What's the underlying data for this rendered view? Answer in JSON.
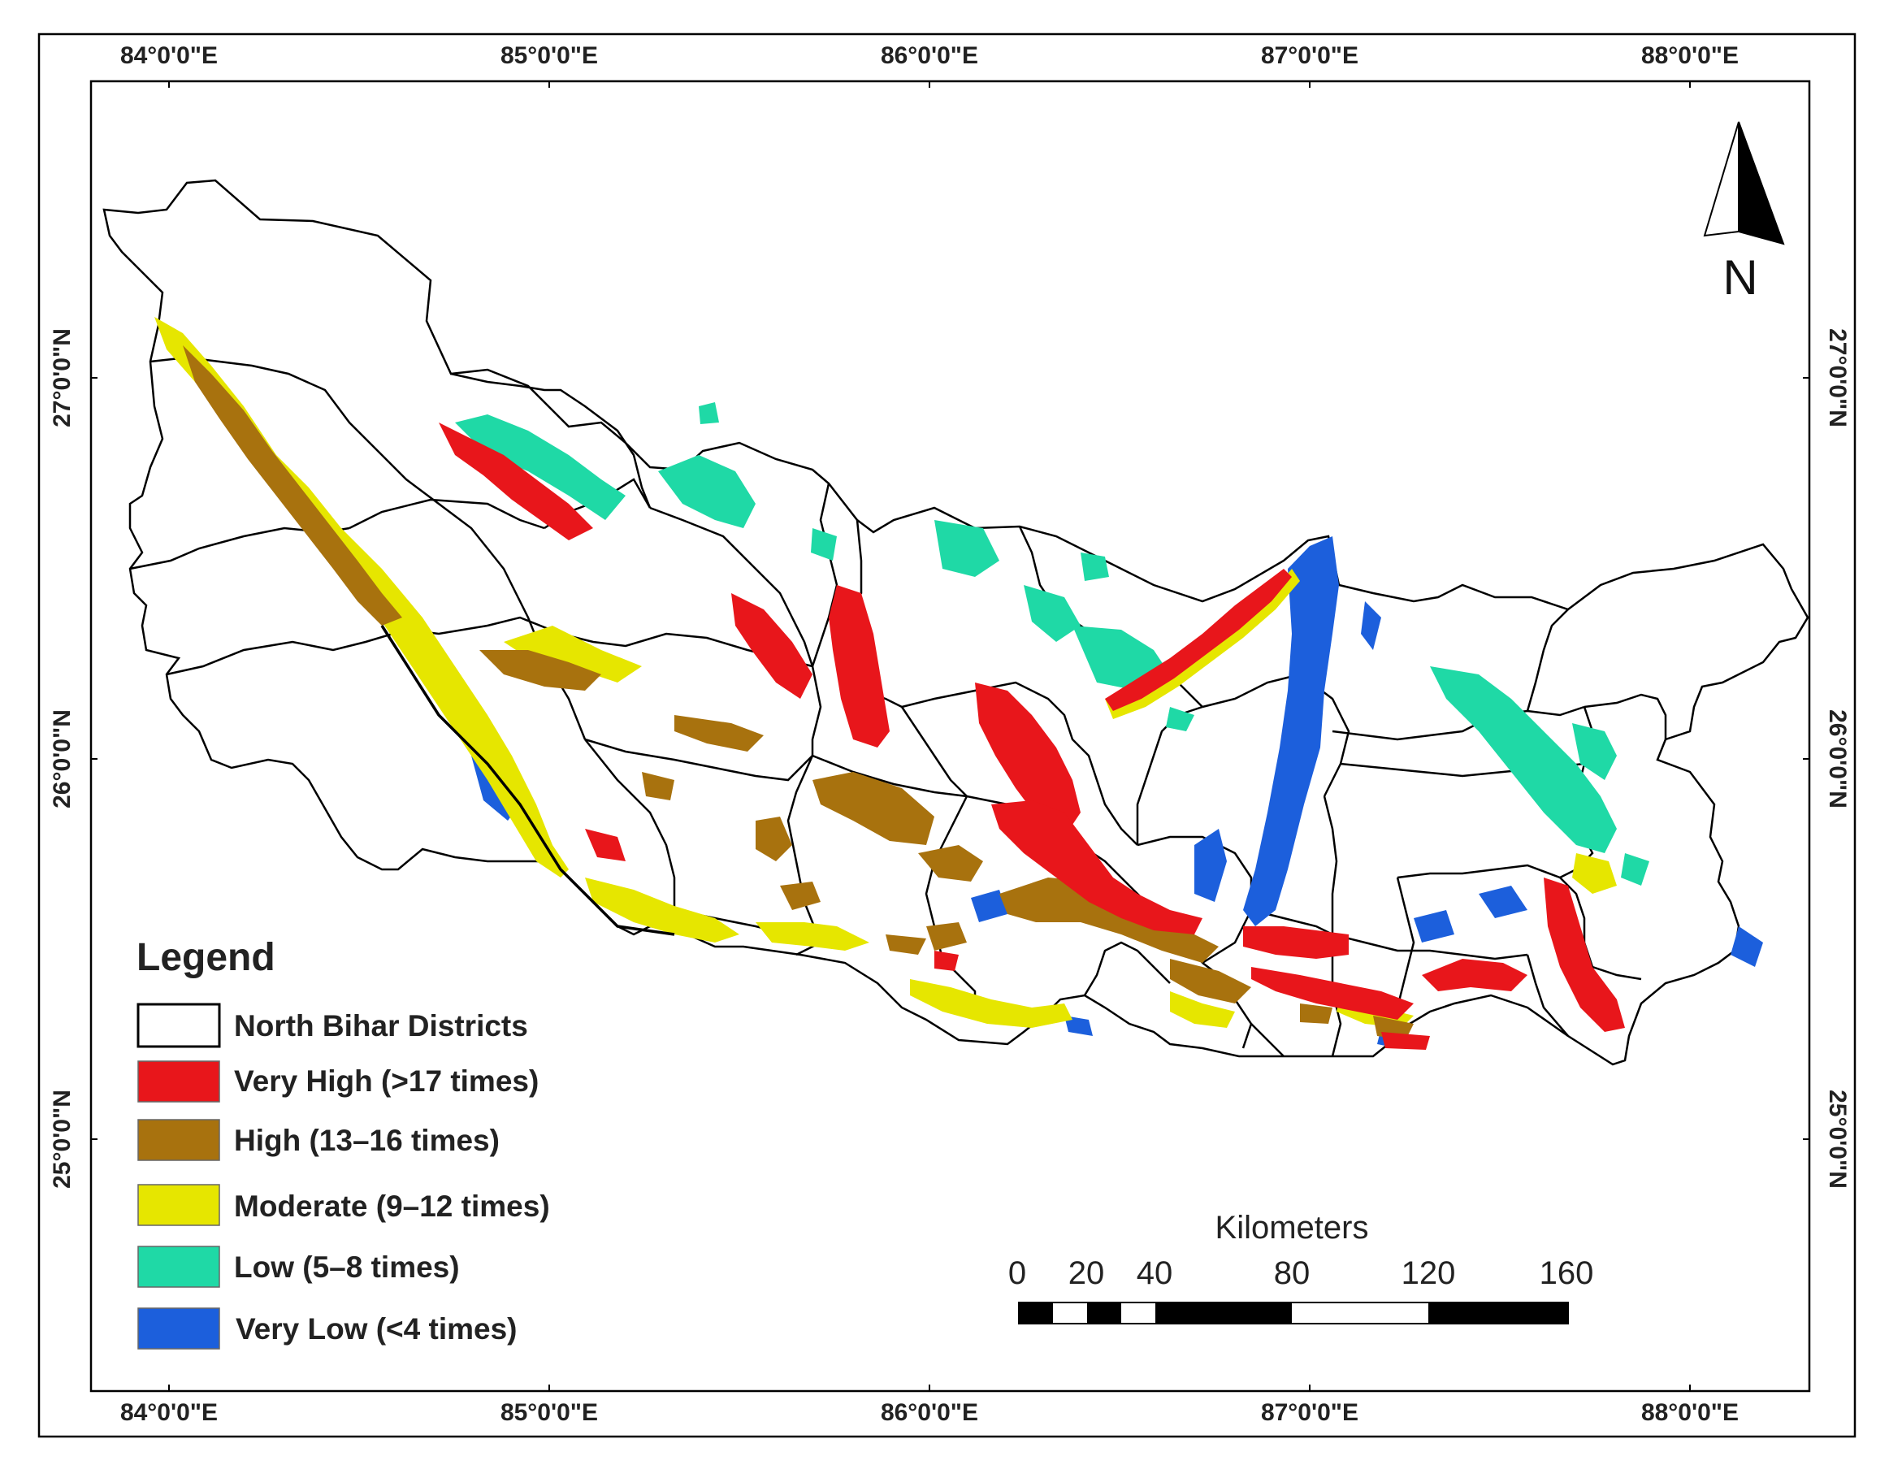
{
  "map": {
    "longitude_labels": [
      "84°0'0\"E",
      "85°0'0\"E",
      "86°0'0\"E",
      "87°0'0\"E",
      "88°0'0\"E"
    ],
    "latitude_labels": [
      "27°0'0\"N",
      "26°0'0\"N",
      "25°0'0\"N"
    ]
  },
  "north_arrow": {
    "label": "N"
  },
  "legend": {
    "title": "Legend",
    "items": [
      {
        "label": "North Bihar Districts",
        "color": "#ffffff",
        "kind": "district-boundary"
      },
      {
        "label": "Very High (>17 times)",
        "color": "#e8161b",
        "kind": "very-high"
      },
      {
        "label": "High (13–16 times)",
        "color": "#a8720e",
        "kind": "high"
      },
      {
        "label": "Moderate (9–12 times)",
        "color": "#e6e600",
        "kind": "moderate"
      },
      {
        "label": "Low (5–8 times)",
        "color": "#1fd9a6",
        "kind": "low"
      },
      {
        "label": "Very Low (<4 times)",
        "color": "#1c5fdc",
        "kind": "very-low"
      }
    ]
  },
  "scale_bar": {
    "unit": "Kilometers",
    "ticks": [
      "0",
      "20",
      "40",
      "80",
      "120",
      "160"
    ]
  }
}
